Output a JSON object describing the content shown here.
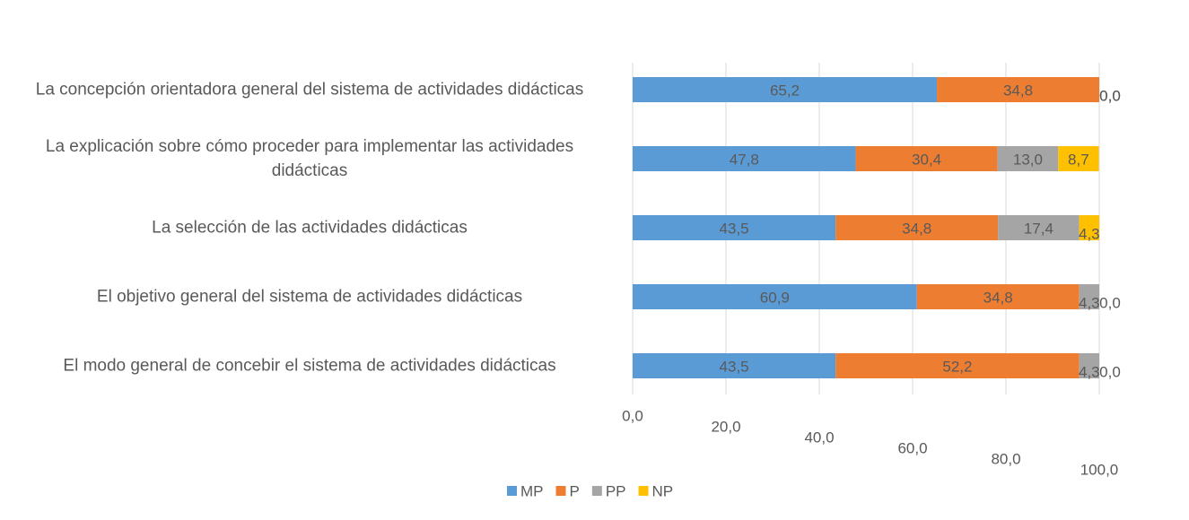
{
  "chart_data": {
    "type": "stacked_barh",
    "categories": [
      "La concepción orientadora general del sistema de actividades didácticas",
      "La explicación sobre cómo proceder para implementar las actividades didácticas",
      "La selección de las actividades didácticas",
      "El objetivo general del sistema de actividades didácticas",
      "El modo general de concebir el sistema de actividades didácticas"
    ],
    "series": [
      {
        "name": "MP",
        "color": "#5b9bd5",
        "values": [
          65.2,
          47.8,
          43.5,
          60.9,
          43.5
        ],
        "value_labels": [
          "65,2",
          "47,8",
          "43,5",
          "60,9",
          "43,5"
        ]
      },
      {
        "name": "P",
        "color": "#ed7d31",
        "values": [
          34.8,
          30.4,
          34.8,
          34.8,
          52.2
        ],
        "value_labels": [
          "34,8",
          "30,4",
          "34,8",
          "34,8",
          "52,2"
        ]
      },
      {
        "name": "PP",
        "color": "#a5a5a5",
        "values": [
          0.0,
          13.0,
          17.4,
          4.3,
          4.3
        ],
        "value_labels": [
          "0,0",
          "13,0",
          "17,4",
          "4,3",
          "4,3"
        ]
      },
      {
        "name": "NP",
        "color": "#ffc000",
        "values": [
          0.0,
          8.7,
          4.3,
          0.0,
          0.0
        ],
        "value_labels": [
          "0,0",
          "8,7",
          "4,3",
          "0,0",
          "0,0"
        ]
      }
    ],
    "xlim": [
      0,
      100
    ],
    "xticks": [
      {
        "value": 0,
        "label": "0,0"
      },
      {
        "value": 20,
        "label": "20,0"
      },
      {
        "value": 40,
        "label": "40,0"
      },
      {
        "value": 60,
        "label": "60,0"
      },
      {
        "value": 80,
        "label": "80,0"
      },
      {
        "value": 100,
        "label": "100,0"
      }
    ],
    "grid": true,
    "legend": "bottom"
  }
}
